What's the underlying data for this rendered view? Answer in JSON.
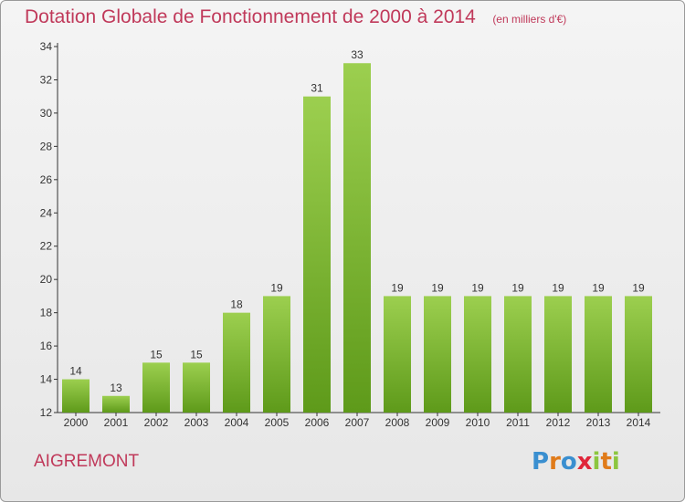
{
  "header": {
    "title": "Dotation Globale de Fonctionnement de 2000 à 2014",
    "subtitle": "(en milliers d'€)"
  },
  "footer": {
    "commune": "AIGREMONT",
    "brand_letters": [
      "P",
      "r",
      "o",
      "x",
      "i",
      "t",
      "i"
    ],
    "brand_colors": [
      "#3a8fd0",
      "#e07b1a",
      "#3a8fd0",
      "#e0263a",
      "#8cc63f",
      "#e07b1a",
      "#8cc63f"
    ]
  },
  "colors": {
    "bar_top": "#9ccf4f",
    "bar_bottom": "#5e9a1a",
    "text": "#333333",
    "title": "#c0395a"
  },
  "chart_data": {
    "type": "bar",
    "categories": [
      "2000",
      "2001",
      "2002",
      "2003",
      "2004",
      "2005",
      "2006",
      "2007",
      "2008",
      "2009",
      "2010",
      "2011",
      "2012",
      "2013",
      "2014"
    ],
    "values": [
      14,
      13,
      15,
      15,
      18,
      19,
      31,
      33,
      19,
      19,
      19,
      19,
      19,
      19,
      19
    ],
    "title": "Dotation Globale de Fonctionnement de 2000 à 2014",
    "ylim": [
      12,
      34
    ],
    "yticks": [
      12,
      14,
      16,
      18,
      20,
      22,
      24,
      26,
      28,
      30,
      32,
      34
    ],
    "grid": false
  }
}
